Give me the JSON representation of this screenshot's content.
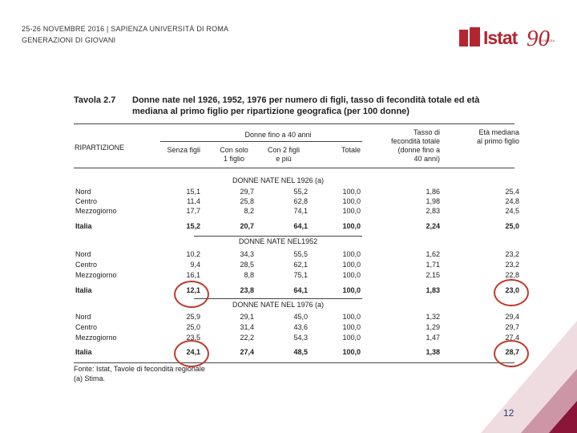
{
  "header": {
    "line1": "25-26 NOVEMBRE 2016 | SAPIENZA UNIVERSITÀ DI ROMA",
    "line2": "GENERAZIONI DI GIOVANI"
  },
  "logo": {
    "word": "Istat",
    "number": "90",
    "tiny": "1926-2016"
  },
  "table": {
    "number": "Tavola 2.7",
    "title": "Donne nate nel 1926, 1952, 1976 per numero di figli, tasso di fecondità totale ed età mediana al primo figlio per ripartizione geografica (per 100 donne)",
    "group_header": "Donne fino a 40 anni",
    "col_ripartizione": "RIPARTIZIONE",
    "col_senza": "Senza figli",
    "col_uno_a": "Con solo",
    "col_uno_b": "1 figlio",
    "col_due_a": "Con 2 figli",
    "col_due_b": "e più",
    "col_totale": "Totale",
    "col_tasso_a": "Tasso di",
    "col_tasso_b": "fecondità totale",
    "col_tasso_c": "(donne fino a",
    "col_tasso_d": "40 anni)",
    "col_eta_a": "Età mediana",
    "col_eta_b": "al primo figlio",
    "sections": [
      {
        "label": "DONNE NATE NEL 1926 (a)",
        "rows": [
          {
            "area": "Nord",
            "senza": "15,1",
            "uno": "29,7",
            "due": "55,2",
            "tot": "100,0",
            "tasso": "1,86",
            "eta": "25,4"
          },
          {
            "area": "Centro",
            "senza": "11,4",
            "uno": "25,8",
            "due": "62,8",
            "tot": "100,0",
            "tasso": "1,98",
            "eta": "24,8"
          },
          {
            "area": "Mezzogiorno",
            "senza": "17,7",
            "uno": "8,2",
            "due": "74,1",
            "tot": "100,0",
            "tasso": "2,83",
            "eta": "24,5"
          },
          {
            "area": "Italia",
            "senza": "15,2",
            "uno": "20,7",
            "due": "64,1",
            "tot": "100,0",
            "tasso": "2,24",
            "eta": "25,0"
          }
        ]
      },
      {
        "label": "DONNE NATE NEL1952",
        "rows": [
          {
            "area": "Nord",
            "senza": "10,2",
            "uno": "34,3",
            "due": "55,5",
            "tot": "100,0",
            "tasso": "1,62",
            "eta": "23,2"
          },
          {
            "area": "Centro",
            "senza": "9,4",
            "uno": "28,5",
            "due": "62,1",
            "tot": "100,0",
            "tasso": "1,71",
            "eta": "23,2"
          },
          {
            "area": "Mezzogiorno",
            "senza": "16,1",
            "uno": "8,8",
            "due": "75,1",
            "tot": "100,0",
            "tasso": "2,15",
            "eta": "22,8"
          },
          {
            "area": "Italia",
            "senza": "12,1",
            "uno": "23,8",
            "due": "64,1",
            "tot": "100,0",
            "tasso": "1,83",
            "eta": "23,0"
          }
        ]
      },
      {
        "label": "DONNE NATE NEL 1976 (a)",
        "rows": [
          {
            "area": "Nord",
            "senza": "25,9",
            "uno": "29,1",
            "due": "45,0",
            "tot": "100,0",
            "tasso": "1,32",
            "eta": "29,4"
          },
          {
            "area": "Centro",
            "senza": "25,0",
            "uno": "31,4",
            "due": "43,6",
            "tot": "100,0",
            "tasso": "1,29",
            "eta": "29,7"
          },
          {
            "area": "Mezzogiorno",
            "senza": "23,5",
            "uno": "22,2",
            "due": "54,3",
            "tot": "100,0",
            "tasso": "1,47",
            "eta": "27,4"
          },
          {
            "area": "Italia",
            "senza": "24,1",
            "uno": "27,4",
            "due": "48,5",
            "tot": "100,0",
            "tasso": "1,38",
            "eta": "28,7"
          }
        ]
      }
    ],
    "footnote_source": "Fonte: Istat, Tavole di fecondità regionale",
    "footnote_a": "(a) Stima."
  },
  "page_number": "12",
  "colors": {
    "accent": "#b3262f",
    "circle": "#c0392b",
    "corner": "#8b1538"
  }
}
